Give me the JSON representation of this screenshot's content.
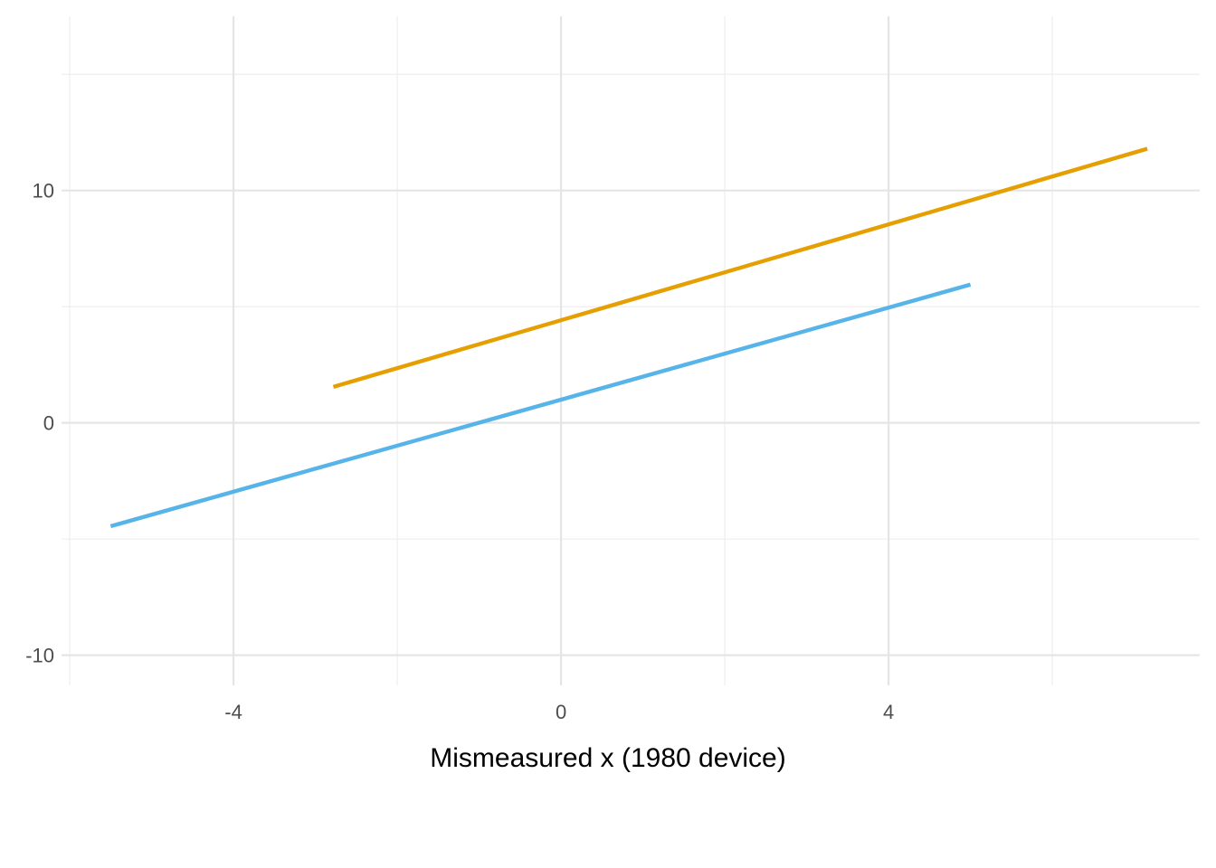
{
  "chart_data": {
    "type": "line",
    "title": "",
    "xlabel": "Mismeasured x (1980 device)",
    "ylabel": "",
    "xlim": [
      -6.1,
      7.8
    ],
    "ylim": [
      -11.3,
      17.5
    ],
    "x_ticks": [
      -4,
      0,
      4
    ],
    "y_ticks": [
      -10,
      0,
      10
    ],
    "x_tick_labels": [
      "-4",
      "0",
      "4"
    ],
    "y_tick_labels": [
      "-10",
      "0",
      "10"
    ],
    "x_minor_ticks": [
      -6,
      -2,
      2,
      6
    ],
    "y_minor_ticks": [
      -5,
      5,
      15
    ],
    "grid": true,
    "legend": "none",
    "series": [
      {
        "color": "#E69F00",
        "x": [
          -2.78,
          7.16
        ],
        "y": [
          1.55,
          11.8
        ]
      },
      {
        "color": "#56B4E9",
        "x": [
          -5.5,
          5.0
        ],
        "y": [
          -4.45,
          5.95
        ]
      }
    ]
  }
}
